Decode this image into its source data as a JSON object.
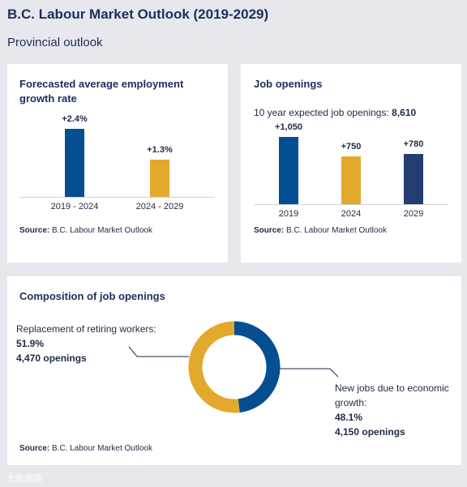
{
  "header": {
    "title": "B.C. Labour Market Outlook (2019-2029)",
    "subtitle": "Provincial outlook"
  },
  "growth": {
    "title_line1": "Forecasted average employment",
    "title_line2": "growth rate",
    "source_label": "Source:",
    "source_text": "B.C. Labour Market Outlook"
  },
  "openings": {
    "title": "Job openings",
    "summary_label": "10 year expected job openings:",
    "summary_value": "8,610",
    "source_label": "Source:",
    "source_text": "B.C. Labour Market Outlook"
  },
  "composition": {
    "title": "Composition of job openings",
    "left_label": "Replacement of retiring workers:",
    "left_pct": "51.9%",
    "left_count": "4,470 openings",
    "right_label_1": "New jobs due to economic",
    "right_label_2": "growth:",
    "right_pct": "48.1%",
    "right_count": "4,150 openings",
    "source_label": "Source:",
    "source_text": "B.C. Labour Market Outlook"
  },
  "watermark": "大数据猿",
  "colors": {
    "blue": "#034f91",
    "gold": "#e2a92c",
    "navy": "#243d70"
  },
  "chart_data": [
    {
      "type": "bar",
      "title": "Forecasted average employment growth rate",
      "categories": [
        "2019 - 2024",
        "2024 - 2029"
      ],
      "values": [
        2.4,
        1.3
      ],
      "labels": [
        "+2.4%",
        "+1.3%"
      ],
      "colors": [
        "#034f91",
        "#e2a92c"
      ]
    },
    {
      "type": "bar",
      "title": "Job openings",
      "categories": [
        "2019",
        "2024",
        "2029"
      ],
      "values": [
        1050,
        750,
        780
      ],
      "labels": [
        "+1,050",
        "+750",
        "+780"
      ],
      "colors": [
        "#034f91",
        "#e2a92c",
        "#243d70"
      ]
    },
    {
      "type": "pie",
      "title": "Composition of job openings",
      "categories": [
        "Replacement of retiring workers",
        "New jobs due to economic growth"
      ],
      "values": [
        51.9,
        48.1
      ],
      "counts": [
        4470,
        4150
      ],
      "colors": [
        "#e2a92c",
        "#034f91"
      ]
    }
  ]
}
